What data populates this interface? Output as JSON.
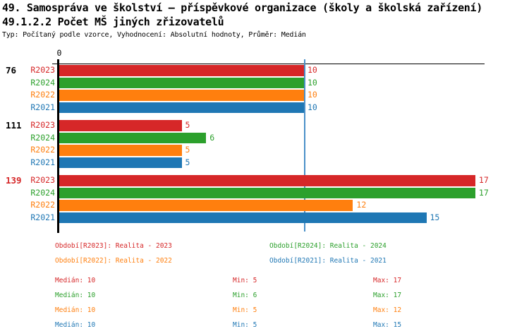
{
  "header": {
    "title_line1": "49. Samospráva ve školství – příspěvkové organizace (školy a školská zařízení)",
    "title_line2": "49.1.2.2 Počet MŠ jiných zřizovatelů",
    "subtitle": "Typ: Počítaný podle vzorce, Vyhodnocení: Absolutní hodnoty, Průměr: Medián"
  },
  "chart_data": {
    "type": "bar",
    "orientation": "horizontal",
    "zero_tick_label": "0",
    "xlim": [
      0,
      17.8
    ],
    "grid": false,
    "median_value": 10,
    "median_line_color": "#4a90c8",
    "series_colors": {
      "R2023": "#d62728",
      "R2024": "#2ca02c",
      "R2022": "#ff7f0e",
      "R2021": "#1f77b4"
    },
    "series_order": [
      "R2023",
      "R2024",
      "R2022",
      "R2021"
    ],
    "groups": [
      {
        "label": "76",
        "label_color": "#000000",
        "bars": [
          {
            "series": "R2023",
            "value": 10
          },
          {
            "series": "R2024",
            "value": 10
          },
          {
            "series": "R2022",
            "value": 10
          },
          {
            "series": "R2021",
            "value": 10
          }
        ]
      },
      {
        "label": "111",
        "label_color": "#000000",
        "bars": [
          {
            "series": "R2023",
            "value": 5
          },
          {
            "series": "R2024",
            "value": 6
          },
          {
            "series": "R2022",
            "value": 5
          },
          {
            "series": "R2021",
            "value": 5
          }
        ]
      },
      {
        "label": "139",
        "label_color": "#d62728",
        "bars": [
          {
            "series": "R2023",
            "value": 17
          },
          {
            "series": "R2024",
            "value": 17
          },
          {
            "series": "R2022",
            "value": 12
          },
          {
            "series": "R2021",
            "value": 15
          }
        ]
      }
    ]
  },
  "legend": {
    "rows": [
      [
        {
          "series": "R2023",
          "text": "Období[R2023]: Realita - 2023",
          "color": "#d62728"
        },
        {
          "series": "R2024",
          "text": "Období[R2024]: Realita - 2024",
          "color": "#2ca02c"
        }
      ],
      [
        {
          "series": "R2022",
          "text": "Období[R2022]: Realita - 2022",
          "color": "#ff7f0e"
        },
        {
          "series": "R2021",
          "text": "Období[R2021]: Realita - 2021",
          "color": "#1f77b4"
        }
      ]
    ]
  },
  "stats": {
    "labels": {
      "median": "Medián",
      "min": "Min",
      "max": "Max"
    },
    "rows": [
      {
        "series": "R2023",
        "color": "#d62728",
        "median": 10,
        "min": 5,
        "max": 17
      },
      {
        "series": "R2024",
        "color": "#2ca02c",
        "median": 10,
        "min": 6,
        "max": 17
      },
      {
        "series": "R2022",
        "color": "#ff7f0e",
        "median": 10,
        "min": 5,
        "max": 12
      },
      {
        "series": "R2021",
        "color": "#1f77b4",
        "median": 10,
        "min": 5,
        "max": 15
      }
    ]
  }
}
